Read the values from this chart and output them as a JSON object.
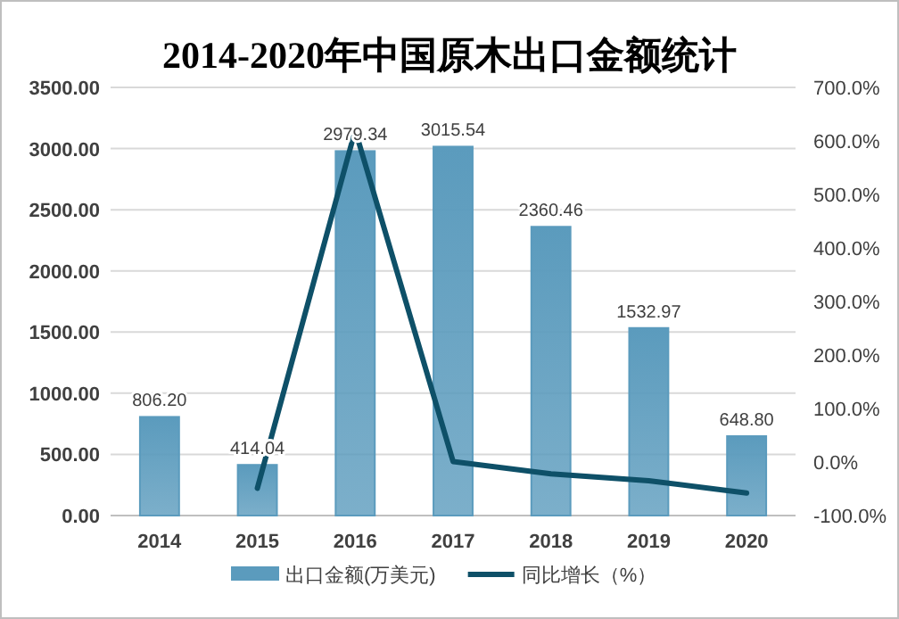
{
  "chart_data": {
    "type": "bar",
    "title": "2014-2020年中国原木出口金额统计",
    "categories": [
      "2014",
      "2015",
      "2016",
      "2017",
      "2018",
      "2019",
      "2020"
    ],
    "series": [
      {
        "name": "出口金额(万美元)",
        "color": "#5b9bbd",
        "values": [
          806.2,
          414.04,
          2979.34,
          3015.54,
          2360.46,
          1532.97,
          648.8
        ],
        "value_labels": [
          "806.20",
          "414.04",
          "2979.34",
          "3015.54",
          "2360.46",
          "1532.97",
          "648.80"
        ]
      },
      {
        "name": "同比增长（%）",
        "type": "line",
        "axis": "y2",
        "color": "#0e5068",
        "values": [
          null,
          -49,
          620,
          1,
          -22,
          -35,
          -58
        ]
      }
    ],
    "ylim": [
      0,
      3500
    ],
    "yticks": [
      {
        "value": 0,
        "label": "0.00"
      },
      {
        "value": 500,
        "label": "500.00"
      },
      {
        "value": 1000,
        "label": "1000.00"
      },
      {
        "value": 1500,
        "label": "1500.00"
      },
      {
        "value": 2000,
        "label": "2000.00"
      },
      {
        "value": 2500,
        "label": "2500.00"
      },
      {
        "value": 3000,
        "label": "3000.00"
      },
      {
        "value": 3500,
        "label": "3500.00"
      }
    ],
    "y2lim": [
      -100,
      700
    ],
    "y2ticks": [
      {
        "value": -100,
        "label": "-100.0%"
      },
      {
        "value": 0,
        "label": "0.0%"
      },
      {
        "value": 100,
        "label": "100.0%"
      },
      {
        "value": 200,
        "label": "200.0%"
      },
      {
        "value": 300,
        "label": "300.0%"
      },
      {
        "value": 400,
        "label": "400.0%"
      },
      {
        "value": 500,
        "label": "500.0%"
      },
      {
        "value": 600,
        "label": "600.0%"
      },
      {
        "value": 700,
        "label": "700.0%"
      }
    ],
    "grid": "y",
    "legend": "bottom"
  }
}
